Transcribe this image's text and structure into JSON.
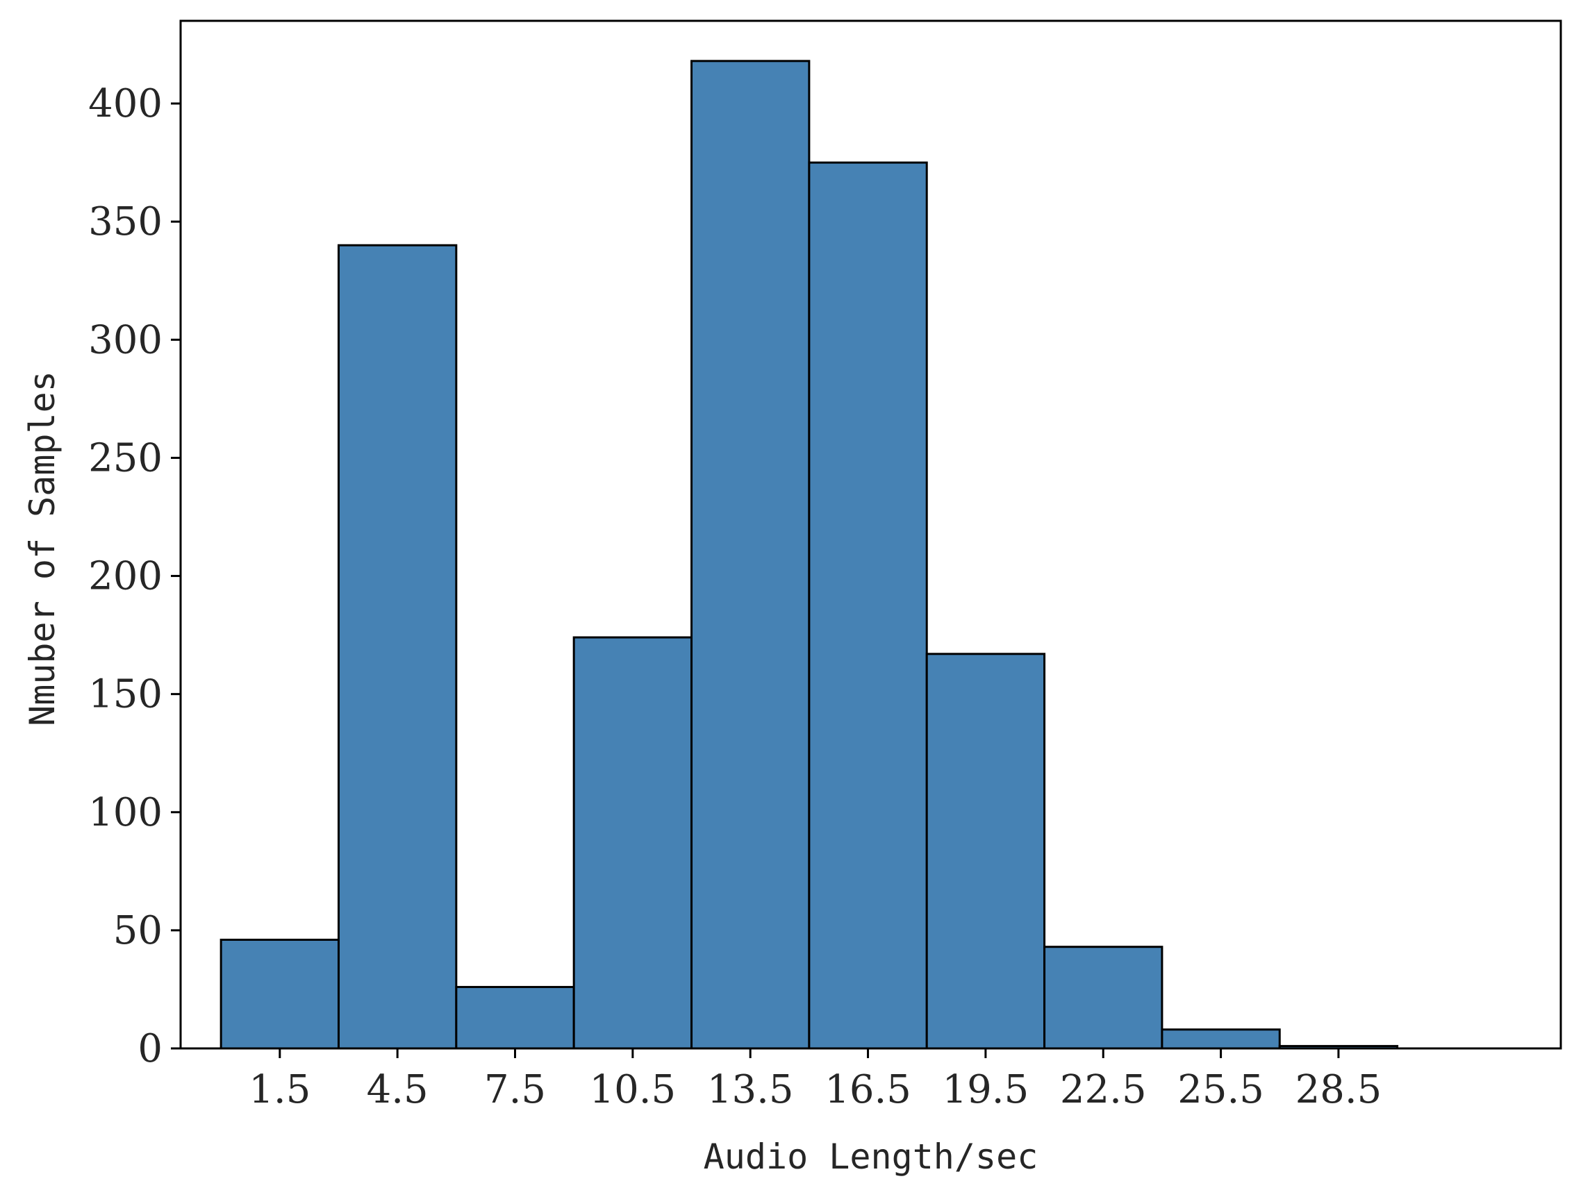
{
  "chart_data": {
    "type": "bar",
    "title": "",
    "xlabel": "Audio Length/sec",
    "ylabel": "Nmuber of Samples",
    "categories": [
      "1.5",
      "4.5",
      "7.5",
      "10.5",
      "13.5",
      "16.5",
      "19.5",
      "22.5",
      "25.5",
      "28.5"
    ],
    "x": [
      1.5,
      4.5,
      7.5,
      10.5,
      13.5,
      16.5,
      19.5,
      22.5,
      25.5,
      28.5
    ],
    "bin_width": 3,
    "values": [
      46,
      340,
      26,
      174,
      418,
      375,
      167,
      43,
      8,
      1
    ],
    "ylim": [
      0,
      435
    ],
    "xlim": [
      -1.03,
      34.17
    ],
    "yticks": [
      0,
      50,
      100,
      150,
      200,
      250,
      300,
      350,
      400
    ],
    "grid": false,
    "legend": "none",
    "bar_color": "#4682b4",
    "edge_color": "#000000"
  }
}
